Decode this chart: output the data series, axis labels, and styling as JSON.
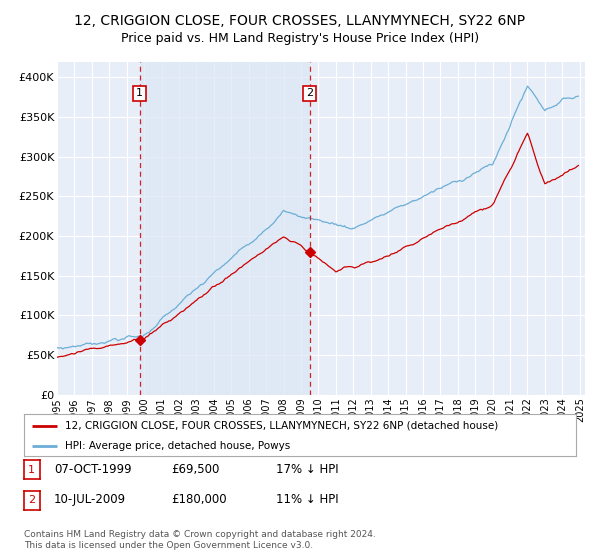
{
  "title": "12, CRIGGION CLOSE, FOUR CROSSES, LLANYMYNECH, SY22 6NP",
  "subtitle": "Price paid vs. HM Land Registry's House Price Index (HPI)",
  "ylim": [
    0,
    420000
  ],
  "yticks": [
    0,
    50000,
    100000,
    150000,
    200000,
    250000,
    300000,
    350000,
    400000
  ],
  "ytick_labels": [
    "£0",
    "£50K",
    "£100K",
    "£150K",
    "£200K",
    "£250K",
    "£300K",
    "£350K",
    "£400K"
  ],
  "background_color": "#ffffff",
  "plot_bg_color": "#e8eef8",
  "plot_bg_color2": "#dce6f5",
  "grid_color": "#ffffff",
  "hpi_color": "#6baed6",
  "price_color": "#cc0000",
  "marker_box_color": "#cc0000",
  "legend_line1": "12, CRIGGION CLOSE, FOUR CROSSES, LLANYMYNECH, SY22 6NP (detached house)",
  "legend_line2": "HPI: Average price, detached house, Powys",
  "table_row1": [
    "1",
    "07-OCT-1999",
    "£69,500",
    "17% ↓ HPI"
  ],
  "table_row2": [
    "2",
    "10-JUL-2009",
    "£180,000",
    "11% ↓ HPI"
  ],
  "footnote": "Contains HM Land Registry data © Crown copyright and database right 2024.\nThis data is licensed under the Open Government Licence v3.0.",
  "title_fontsize": 10,
  "subtitle_fontsize": 9
}
